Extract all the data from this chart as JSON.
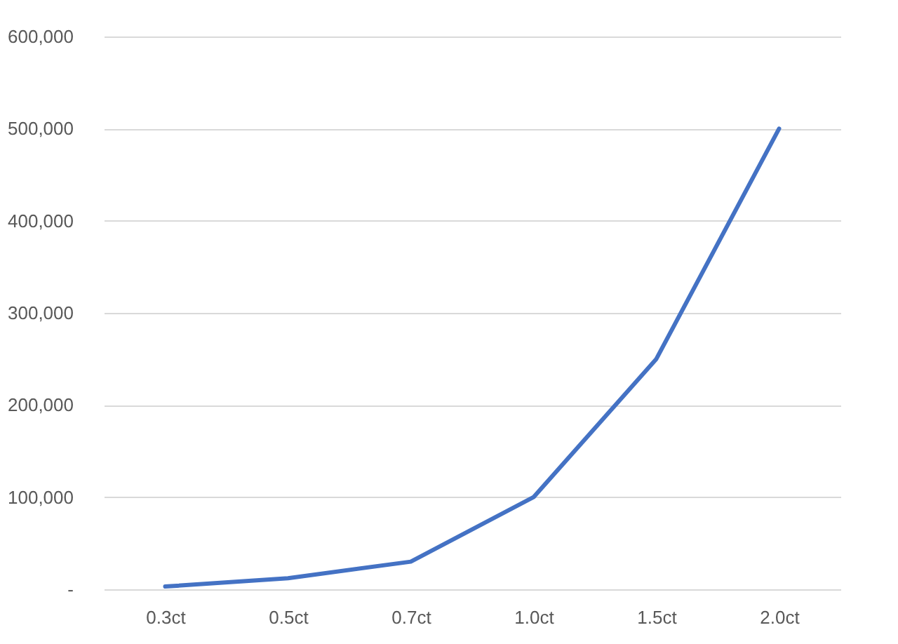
{
  "chart_data": {
    "type": "line",
    "categories": [
      "0.3ct",
      "0.5ct",
      "0.7ct",
      "1.0ct",
      "1.5ct",
      "2.0ct"
    ],
    "series": [
      {
        "color": "#4472c4",
        "values": [
          3000,
          12000,
          30000,
          100000,
          250000,
          500000
        ]
      }
    ],
    "ylim": [
      0,
      600000
    ],
    "yticks": [
      {
        "value": 0,
        "label": "-"
      },
      {
        "value": 100000,
        "label": "100,000"
      },
      {
        "value": 200000,
        "label": "200,000"
      },
      {
        "value": 300000,
        "label": "300,000"
      },
      {
        "value": 400000,
        "label": "400,000"
      },
      {
        "value": 500000,
        "label": "500,000"
      },
      {
        "value": 600000,
        "label": "600,000"
      }
    ],
    "grid": "y",
    "marker": "none",
    "line_style": "solid"
  }
}
